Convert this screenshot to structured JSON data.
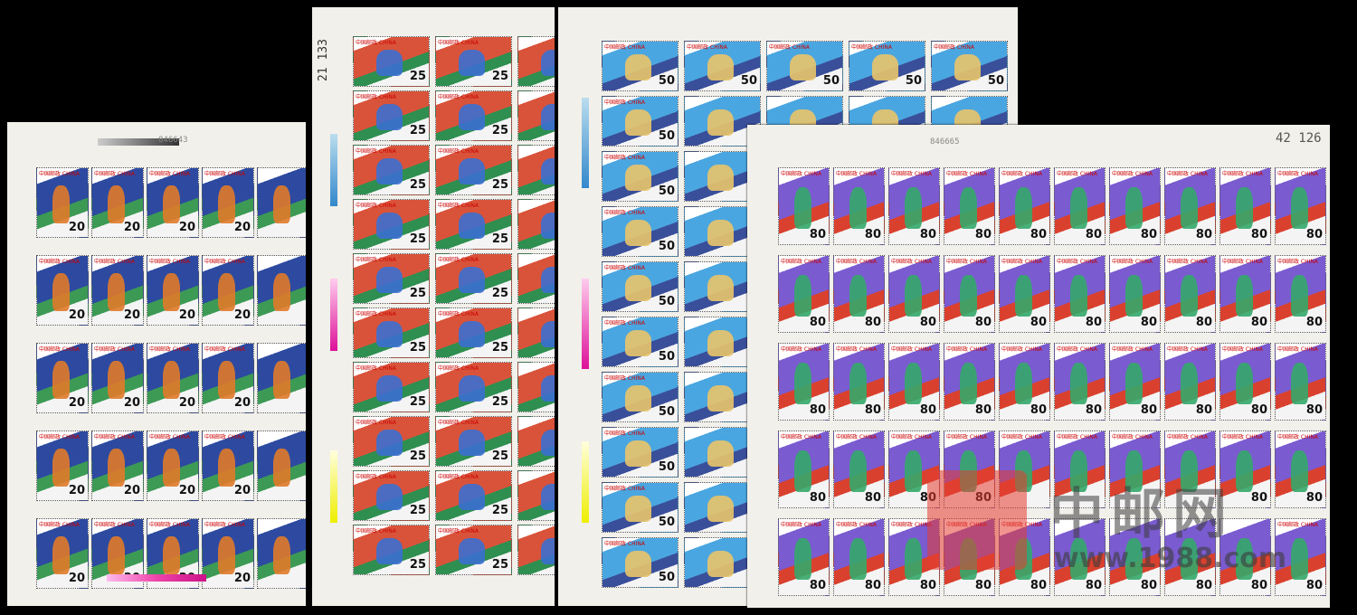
{
  "stamp_header": "中国邮政",
  "stamp_country": "CHINA",
  "sheets": [
    {
      "sport": "basketball",
      "denomination": "20",
      "serial": "846643",
      "colors": [
        "#2d4aa0",
        "#3c9a55",
        "#e07a2a"
      ]
    },
    {
      "sport": "gymnastics",
      "denomination": "25",
      "serial": "21 133",
      "colors": [
        "#d9533a",
        "#2e8f50",
        "#3b6fd0"
      ]
    },
    {
      "sport": "diving",
      "denomination": "50",
      "serial": "",
      "colors": [
        "#4aa6e0",
        "#3a4f9a",
        "#e9c46a"
      ]
    },
    {
      "sport": "weightlifting",
      "denomination": "80",
      "serial": "846665",
      "serial2": "42 126",
      "colors": [
        "#7a5bd0",
        "#d9412e",
        "#34a86a"
      ]
    }
  ],
  "watermark": {
    "logo": "中邮网",
    "url": "www.1988.com"
  }
}
